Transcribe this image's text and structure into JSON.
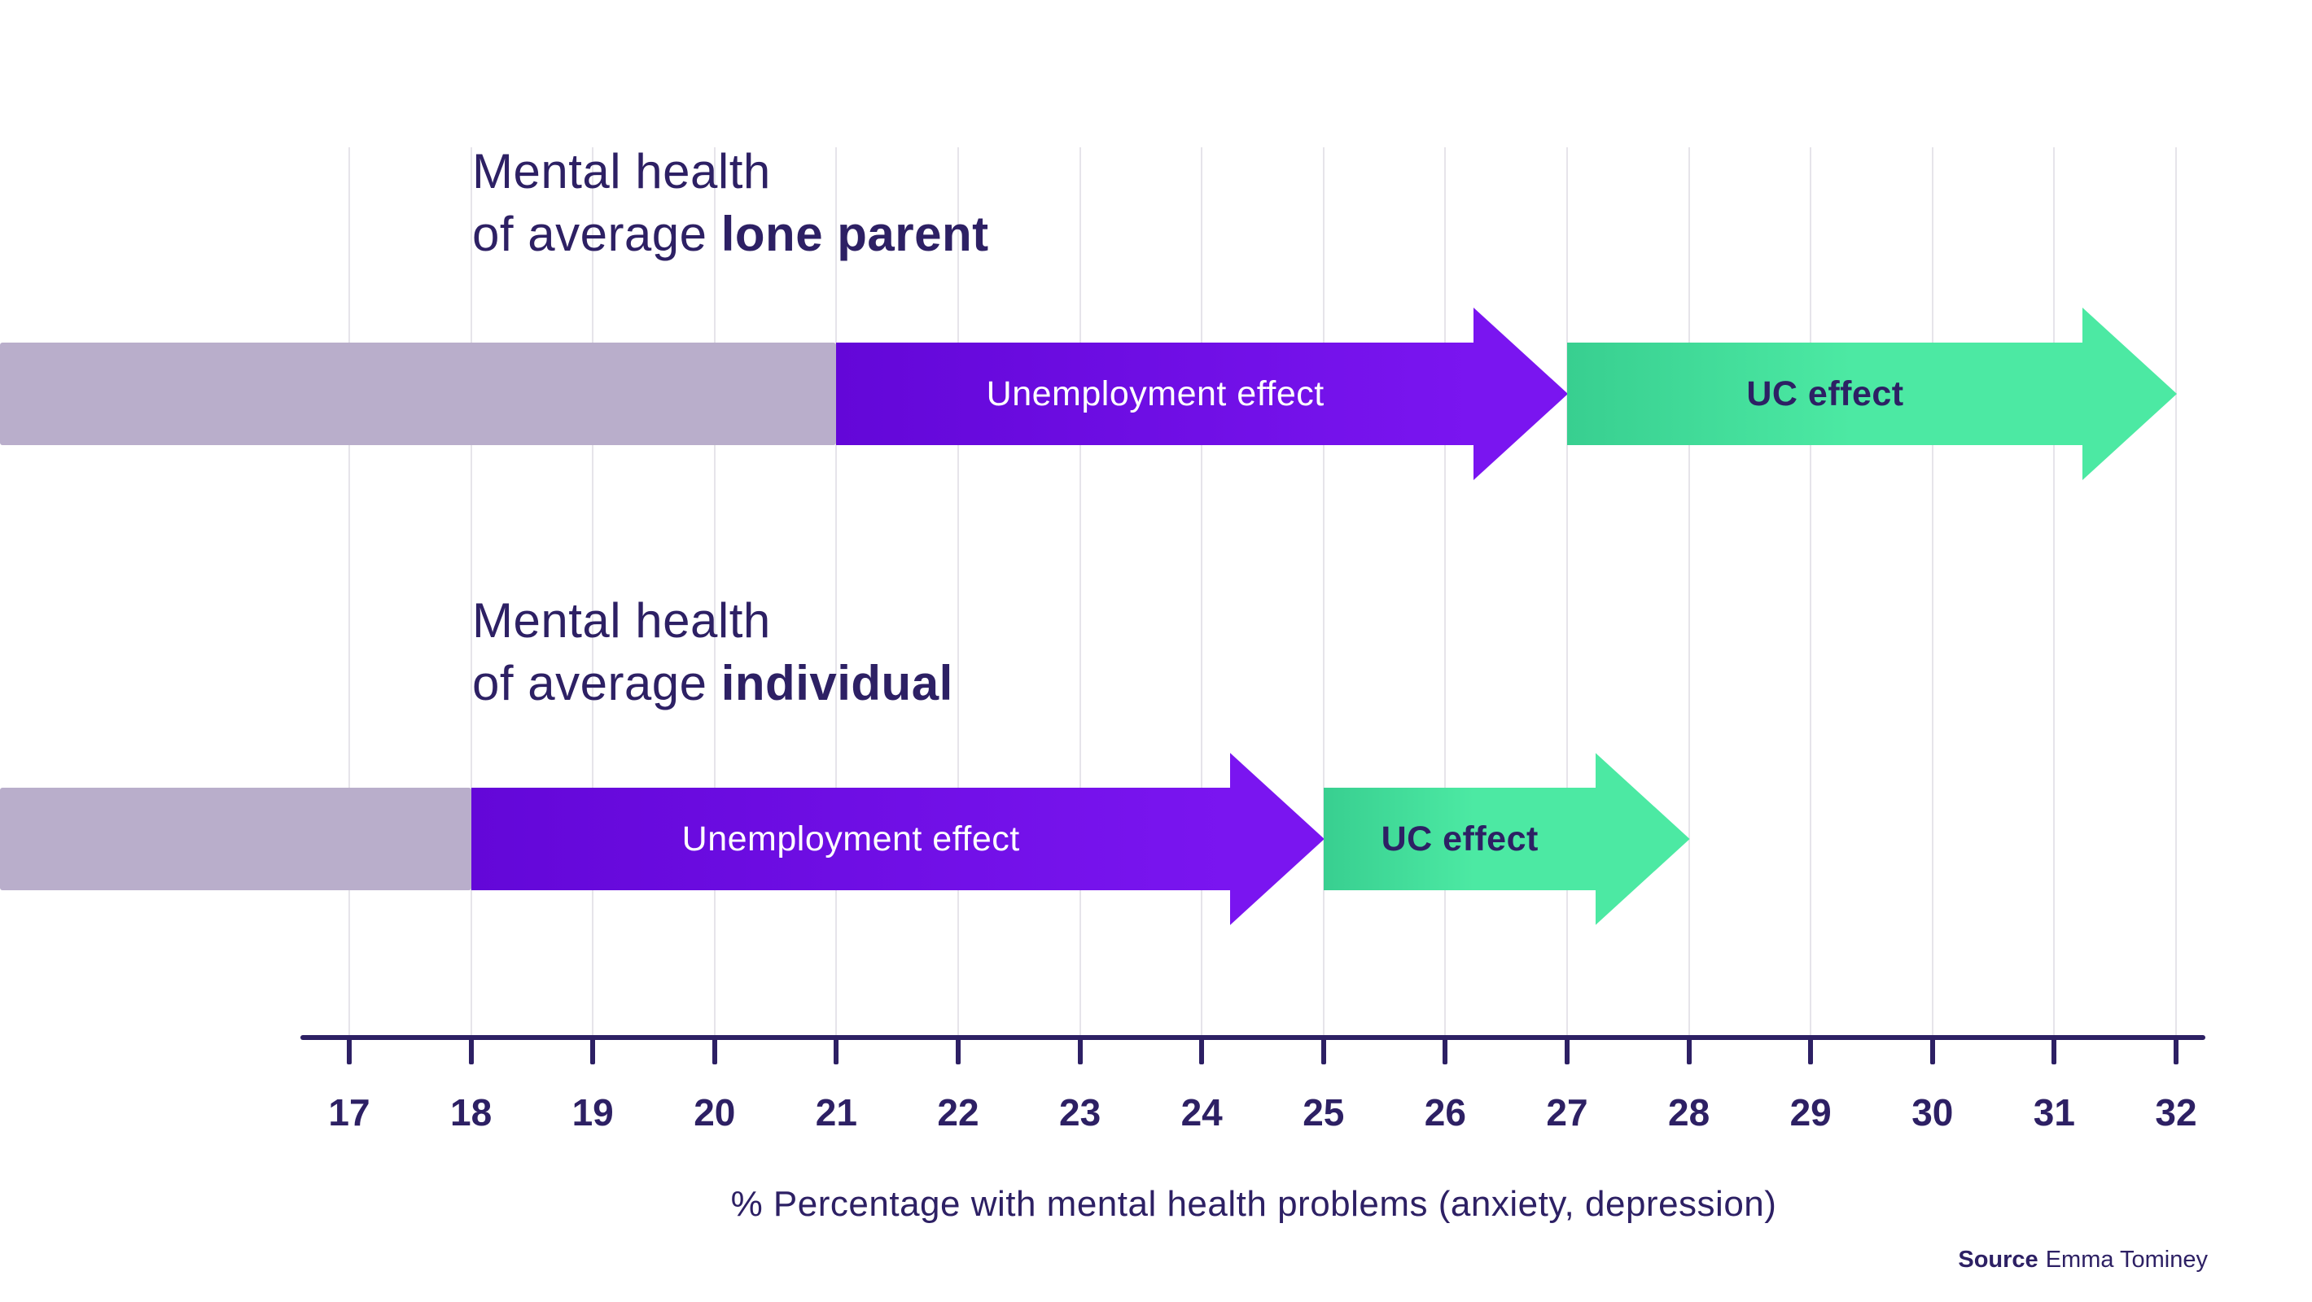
{
  "chart_data": {
    "type": "bar",
    "subtype": "horizontal-arrow-stacked",
    "title": "",
    "xlabel": "% Percentage with mental health problems (anxiety, depression)",
    "ylabel": "",
    "x_axis": {
      "min": 17,
      "max": 32,
      "ticks": [
        17,
        18,
        19,
        20,
        21,
        22,
        23,
        24,
        25,
        26,
        27,
        28,
        29,
        30,
        31,
        32
      ]
    },
    "grid": "vertical-on",
    "legend_position": "none",
    "rows": [
      {
        "label": {
          "line1": "Mental health",
          "line2_regular": "of average ",
          "line2_bold": "lone parent"
        },
        "baseline_end": 21,
        "segments": [
          {
            "name": "Unemployment effect",
            "start": 21,
            "end": 27,
            "kind": "unemployment"
          },
          {
            "name": "UC effect",
            "start": 27,
            "end": 32,
            "kind": "uc"
          }
        ]
      },
      {
        "label": {
          "line1": "Mental health",
          "line2_regular": "of average ",
          "line2_bold": "individual"
        },
        "baseline_end": 18,
        "segments": [
          {
            "name": "Unemployment effect",
            "start": 18,
            "end": 25,
            "kind": "unemployment"
          },
          {
            "name": "UC effect",
            "start": 25,
            "end": 28,
            "kind": "uc"
          }
        ]
      }
    ],
    "source": {
      "label": "Source",
      "text": "Emma Tominey"
    },
    "colors": {
      "text_dark": "#2d2064",
      "baseline_gray": "#b9aecb",
      "unemployment_start": "#6307d8",
      "unemployment_end": "#7a15f0",
      "uc_start": "#38cf90",
      "uc_end": "#4ce9a3",
      "grid": "#e6e4ea",
      "label_on_purple": "#ffffff"
    }
  }
}
